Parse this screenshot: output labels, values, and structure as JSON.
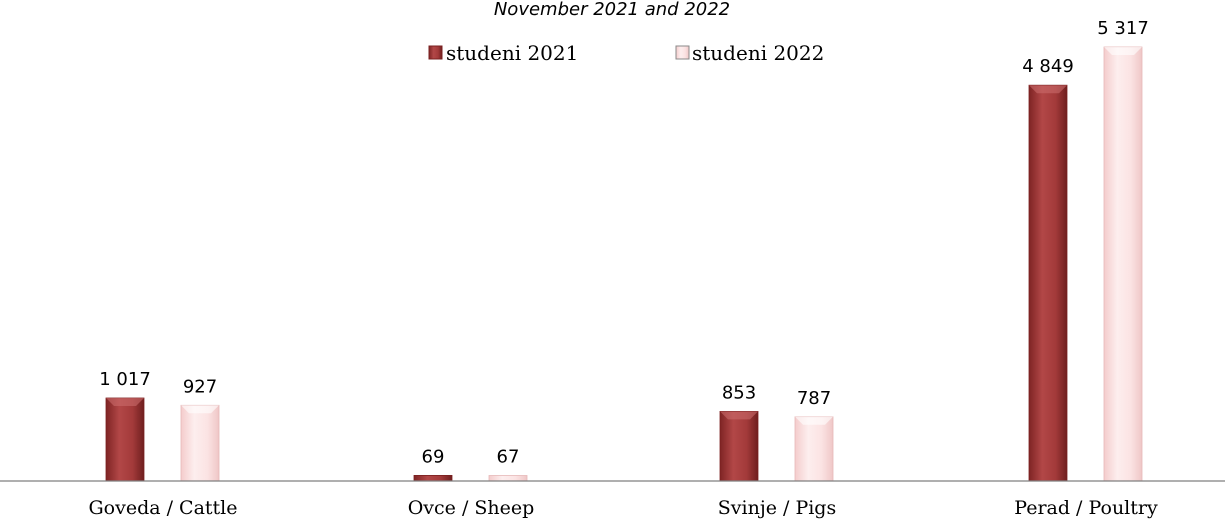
{
  "chart_data": {
    "type": "bar",
    "title": "November 2021 and 2022",
    "categories": [
      "Goveda / Cattle",
      "Ovce / Sheep",
      "Svinje / Pigs",
      "Perad / Poultry"
    ],
    "series": [
      {
        "name": "studeni 2021",
        "values": [
          1017,
          69,
          853,
          4849
        ],
        "labels": [
          "1 017",
          "69",
          "853",
          "4 849"
        ],
        "color": "#a63a3a"
      },
      {
        "name": "studeni 2022",
        "values": [
          927,
          67,
          787,
          5317
        ],
        "labels": [
          "927",
          "67",
          "787",
          "5 317"
        ],
        "color": "#fbe3e3"
      }
    ],
    "ylim": [
      0,
      5500
    ],
    "xlabel": "",
    "ylabel": "",
    "grid": false,
    "legend_position": "top-center"
  }
}
